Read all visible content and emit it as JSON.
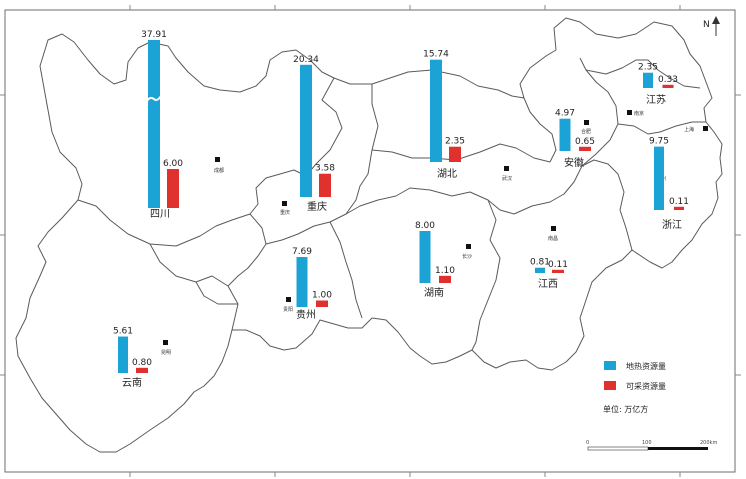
{
  "colors": {
    "resource": "#1ba3d6",
    "recoverable": "#e0312e",
    "border": "#5a5a5a"
  },
  "north_label": "N",
  "legend": {
    "resource_label": "地热资源量",
    "recoverable_label": "可采资源量",
    "unit": "单位: 万亿方"
  },
  "scale": {
    "ticks": [
      "0",
      "100",
      "200km"
    ]
  },
  "chart_data": {
    "type": "bar",
    "categories": [
      "四川",
      "重庆",
      "湖北",
      "安徽",
      "江苏",
      "贵州",
      "湖南",
      "江西",
      "浙江",
      "云南"
    ],
    "series": [
      {
        "name": "地热资源量",
        "values": [
          37.91,
          20.34,
          15.74,
          4.97,
          2.35,
          7.69,
          8.0,
          0.81,
          9.75,
          5.61
        ]
      },
      {
        "name": "可采资源量",
        "values": [
          6.0,
          3.58,
          2.35,
          0.65,
          0.33,
          1.0,
          1.1,
          0.11,
          0.11,
          0.8
        ]
      }
    ]
  },
  "provinces": [
    {
      "name": "四川",
      "resource": "37.91",
      "recoverable": "6.00",
      "capital": "成都"
    },
    {
      "name": "重庆",
      "resource": "20.34",
      "recoverable": "3.58",
      "capital": "重庆"
    },
    {
      "name": "湖北",
      "resource": "15.74",
      "recoverable": "2.35",
      "capital": "武汉"
    },
    {
      "name": "安徽",
      "resource": "4.97",
      "recoverable": "0.65",
      "capital": "合肥"
    },
    {
      "name": "江苏",
      "resource": "2.35",
      "recoverable": "0.33",
      "capital": "南京"
    },
    {
      "name": "贵州",
      "resource": "7.69",
      "recoverable": "1.00",
      "capital": "贵阳"
    },
    {
      "name": "湖南",
      "resource": "8.00",
      "recoverable": "1.10",
      "capital": "长沙"
    },
    {
      "name": "江西",
      "resource": "0.81",
      "recoverable": "0.11",
      "capital": "南昌"
    },
    {
      "name": "浙江",
      "resource": "9.75",
      "recoverable": "0.11",
      "capital": "杭州"
    },
    {
      "name": "云南",
      "resource": "5.61",
      "recoverable": "0.80",
      "capital": "昆明"
    }
  ],
  "extra_city": "上海"
}
